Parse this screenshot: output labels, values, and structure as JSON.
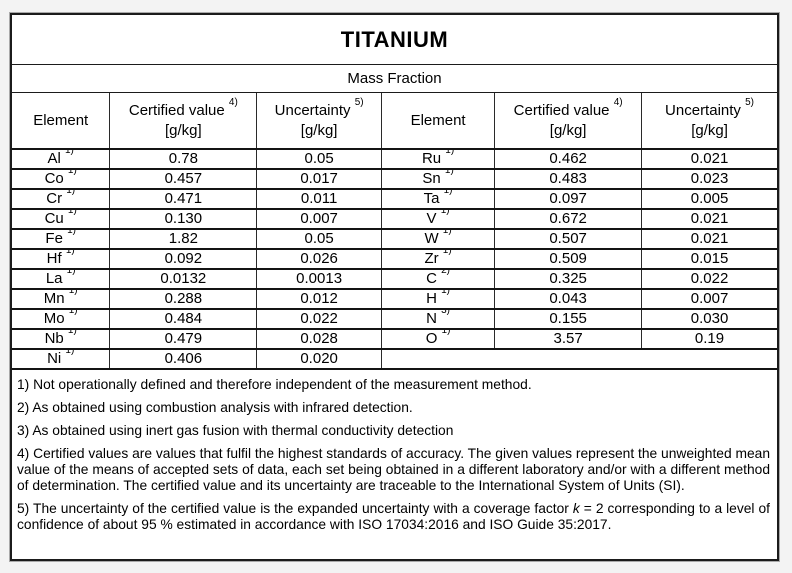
{
  "title": "TITANIUM",
  "subtitle": "Mass Fraction",
  "columns": [
    {
      "label": "Element",
      "sup": "",
      "unit": ""
    },
    {
      "label": "Certified value",
      "sup": "4)",
      "unit": "[g/kg]"
    },
    {
      "label": "Uncertainty",
      "sup": "5)",
      "unit": "[g/kg]"
    },
    {
      "label": "Element",
      "sup": "",
      "unit": ""
    },
    {
      "label": "Certified value",
      "sup": "4)",
      "unit": "[g/kg]"
    },
    {
      "label": "Uncertainty",
      "sup": "5)",
      "unit": "[g/kg]"
    }
  ],
  "rows": [
    {
      "left": {
        "el": "Al",
        "sup": "1)",
        "value": "0.78",
        "unc": "0.05"
      },
      "right": {
        "el": "Ru",
        "sup": "1)",
        "value": "0.462",
        "unc": "0.021"
      }
    },
    {
      "left": {
        "el": "Co",
        "sup": "1)",
        "value": "0.457",
        "unc": "0.017"
      },
      "right": {
        "el": "Sn",
        "sup": "1)",
        "value": "0.483",
        "unc": "0.023"
      }
    },
    {
      "left": {
        "el": "Cr",
        "sup": "1)",
        "value": "0.471",
        "unc": "0.011"
      },
      "right": {
        "el": "Ta",
        "sup": "1)",
        "value": "0.097",
        "unc": "0.005"
      }
    },
    {
      "left": {
        "el": "Cu",
        "sup": "1)",
        "value": "0.130",
        "unc": "0.007"
      },
      "right": {
        "el": "V",
        "sup": "1)",
        "value": "0.672",
        "unc": "0.021"
      }
    },
    {
      "left": {
        "el": "Fe",
        "sup": "1)",
        "value": "1.82",
        "unc": "0.05"
      },
      "right": {
        "el": "W",
        "sup": "1)",
        "value": "0.507",
        "unc": "0.021"
      }
    },
    {
      "left": {
        "el": "Hf",
        "sup": "1)",
        "value": "0.092",
        "unc": "0.026"
      },
      "right": {
        "el": "Zr",
        "sup": "1)",
        "value": "0.509",
        "unc": "0.015"
      }
    },
    {
      "left": {
        "el": "La",
        "sup": "1)",
        "value": "0.0132",
        "unc": "0.0013"
      },
      "right": {
        "el": "C",
        "sup": "2)",
        "value": "0.325",
        "unc": "0.022"
      }
    },
    {
      "left": {
        "el": "Mn",
        "sup": "1)",
        "value": "0.288",
        "unc": "0.012"
      },
      "right": {
        "el": "H",
        "sup": "1)",
        "value": "0.043",
        "unc": "0.007"
      }
    },
    {
      "left": {
        "el": "Mo",
        "sup": "1)",
        "value": "0.484",
        "unc": "0.022"
      },
      "right": {
        "el": "N",
        "sup": "3)",
        "value": "0.155",
        "unc": "0.030"
      }
    },
    {
      "left": {
        "el": "Nb",
        "sup": "1)",
        "value": "0.479",
        "unc": "0.028"
      },
      "right": {
        "el": "O",
        "sup": "1)",
        "value": "3.57",
        "unc": "0.19"
      }
    },
    {
      "left": {
        "el": "Ni",
        "sup": "1)",
        "value": "0.406",
        "unc": "0.020"
      },
      "right": null
    }
  ],
  "footnotes": [
    {
      "text": "1) Not operationally defined and therefore independent of the measurement method."
    },
    {
      "text": "2) As obtained using combustion analysis with infrared detection."
    },
    {
      "text": "3) As obtained using inert gas fusion with thermal conductivity detection"
    },
    {
      "text": "4) Certified values are values that fulfil the highest standards of accuracy. The given values represent the unweighted mean value of the means of accepted sets of data, each set being obtained in a different laboratory and/or with a different method of determination. The certified value and its uncertainty are traceable to the International System of Units (SI)."
    },
    {
      "pre": "5) The uncertainty of the certified value is the expanded uncertainty with a coverage factor ",
      "k": "k",
      "post": " = 2 corresponding to a level of confidence of about 95 % estimated in accordance with ISO 17034:2016 and ISO Guide 35:2017."
    }
  ],
  "colors": {
    "page_background": "#f3f3f3",
    "sheet_background": "#ffffff",
    "border": "#1b1b1b",
    "text": "#000000"
  }
}
